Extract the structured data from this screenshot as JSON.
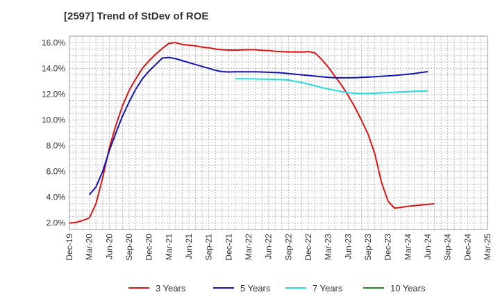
{
  "chart_data": {
    "type": "line",
    "title": "[2597]  Trend of StDev of ROE",
    "xlabel": "",
    "ylabel": "",
    "x_ticks": [
      "Dec-19",
      "Mar-20",
      "Jun-20",
      "Sep-20",
      "Dec-20",
      "Mar-21",
      "Jun-21",
      "Sep-21",
      "Dec-21",
      "Mar-22",
      "Jun-22",
      "Sep-22",
      "Dec-22",
      "Mar-23",
      "Jun-23",
      "Sep-23",
      "Dec-23",
      "Mar-24",
      "Jun-24",
      "Sep-24",
      "Dec-24",
      "Mar-25"
    ],
    "y_ticks": [
      "2.0%",
      "4.0%",
      "6.0%",
      "8.0%",
      "10.0%",
      "12.0%",
      "14.0%",
      "16.0%"
    ],
    "ylim": [
      1.5,
      16.5
    ],
    "grid": true,
    "legend_position": "bottom",
    "series": [
      {
        "name": "3 Years",
        "color": "#dd1111",
        "points": [
          [
            0,
            2.0
          ],
          [
            1,
            2.05
          ],
          [
            2,
            2.2
          ],
          [
            3,
            2.4
          ],
          [
            4,
            3.5
          ],
          [
            5,
            5.5
          ],
          [
            6,
            7.8
          ],
          [
            7,
            9.6
          ],
          [
            8,
            11.1
          ],
          [
            9,
            12.3
          ],
          [
            10,
            13.2
          ],
          [
            11,
            14.0
          ],
          [
            12,
            14.6
          ],
          [
            13,
            15.1
          ],
          [
            14,
            15.55
          ],
          [
            15,
            15.95
          ],
          [
            16,
            16.0
          ],
          [
            17,
            15.85
          ],
          [
            18,
            15.8
          ],
          [
            19,
            15.75
          ],
          [
            20,
            15.65
          ],
          [
            21,
            15.6
          ],
          [
            22,
            15.5
          ],
          [
            23,
            15.45
          ],
          [
            24,
            15.42
          ],
          [
            25,
            15.42
          ],
          [
            26,
            15.43
          ],
          [
            27,
            15.45
          ],
          [
            28,
            15.45
          ],
          [
            29,
            15.4
          ],
          [
            30,
            15.38
          ],
          [
            31,
            15.33
          ],
          [
            32,
            15.3
          ],
          [
            33,
            15.28
          ],
          [
            34,
            15.27
          ],
          [
            35,
            15.27
          ],
          [
            36,
            15.3
          ],
          [
            37,
            15.2
          ],
          [
            38,
            14.7
          ],
          [
            39,
            14.1
          ],
          [
            40,
            13.4
          ],
          [
            41,
            12.7
          ],
          [
            42,
            11.9
          ],
          [
            43,
            11.0
          ],
          [
            44,
            10.0
          ],
          [
            45,
            8.9
          ],
          [
            46,
            7.4
          ],
          [
            47,
            5.2
          ],
          [
            48,
            3.7
          ],
          [
            49,
            3.15
          ],
          [
            50,
            3.22
          ],
          [
            51,
            3.3
          ],
          [
            52,
            3.35
          ],
          [
            53,
            3.4
          ],
          [
            54,
            3.45
          ],
          [
            55,
            3.5
          ]
        ]
      },
      {
        "name": "5 Years",
        "color": "#1111bb",
        "points": [
          [
            3,
            4.2
          ],
          [
            4,
            4.8
          ],
          [
            5,
            6.0
          ],
          [
            6,
            7.6
          ],
          [
            7,
            9.0
          ],
          [
            8,
            10.3
          ],
          [
            9,
            11.4
          ],
          [
            10,
            12.4
          ],
          [
            11,
            13.2
          ],
          [
            12,
            13.8
          ],
          [
            13,
            14.3
          ],
          [
            14,
            14.8
          ],
          [
            15,
            14.85
          ],
          [
            16,
            14.75
          ],
          [
            17,
            14.6
          ],
          [
            18,
            14.45
          ],
          [
            19,
            14.3
          ],
          [
            20,
            14.15
          ],
          [
            21,
            14.0
          ],
          [
            22,
            13.85
          ],
          [
            23,
            13.75
          ],
          [
            24,
            13.72
          ],
          [
            25,
            13.73
          ],
          [
            26,
            13.74
          ],
          [
            27,
            13.74
          ],
          [
            28,
            13.73
          ],
          [
            29,
            13.72
          ],
          [
            30,
            13.7
          ],
          [
            31,
            13.68
          ],
          [
            32,
            13.65
          ],
          [
            33,
            13.6
          ],
          [
            34,
            13.55
          ],
          [
            35,
            13.5
          ],
          [
            36,
            13.45
          ],
          [
            37,
            13.4
          ],
          [
            38,
            13.35
          ],
          [
            39,
            13.3
          ],
          [
            40,
            13.28
          ],
          [
            41,
            13.27
          ],
          [
            42,
            13.27
          ],
          [
            43,
            13.28
          ],
          [
            44,
            13.3
          ],
          [
            45,
            13.32
          ],
          [
            46,
            13.35
          ],
          [
            47,
            13.38
          ],
          [
            48,
            13.42
          ],
          [
            49,
            13.45
          ],
          [
            50,
            13.5
          ],
          [
            51,
            13.55
          ],
          [
            52,
            13.6
          ],
          [
            53,
            13.68
          ],
          [
            54,
            13.75
          ]
        ]
      },
      {
        "name": "7 Years",
        "color": "#22dddd",
        "points": [
          [
            25,
            13.2
          ],
          [
            26,
            13.2
          ],
          [
            27,
            13.2
          ],
          [
            28,
            13.18
          ],
          [
            29,
            13.17
          ],
          [
            30,
            13.16
          ],
          [
            31,
            13.15
          ],
          [
            32,
            13.13
          ],
          [
            33,
            13.1
          ],
          [
            34,
            13.0
          ],
          [
            35,
            12.9
          ],
          [
            36,
            12.78
          ],
          [
            37,
            12.65
          ],
          [
            38,
            12.52
          ],
          [
            39,
            12.4
          ],
          [
            40,
            12.3
          ],
          [
            41,
            12.2
          ],
          [
            42,
            12.12
          ],
          [
            43,
            12.07
          ],
          [
            44,
            12.05
          ],
          [
            45,
            12.05
          ],
          [
            46,
            12.07
          ],
          [
            47,
            12.1
          ],
          [
            48,
            12.12
          ],
          [
            49,
            12.15
          ],
          [
            50,
            12.18
          ],
          [
            51,
            12.2
          ],
          [
            52,
            12.22
          ],
          [
            53,
            12.23
          ],
          [
            54,
            12.25
          ]
        ]
      },
      {
        "name": "10 Years",
        "color": "#228822",
        "points": []
      }
    ]
  }
}
